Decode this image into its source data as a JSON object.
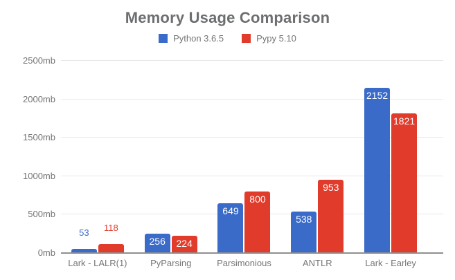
{
  "title": "Memory Usage Comparison",
  "legend": {
    "items": [
      {
        "label": "Python 3.6.5",
        "color": "#3a6bc8"
      },
      {
        "label": "Pypy 5.10",
        "color": "#e03b2b"
      }
    ]
  },
  "colors": {
    "series_blue": "#3a6bc8",
    "series_red": "#e03b2b",
    "title_text": "#6d6e70",
    "axis_text": "#757575",
    "gridline": "#e8e8e8",
    "baseline": "#8f8f8f",
    "inside_label": "#ffffff",
    "background": "#ffffff"
  },
  "chart_data": {
    "type": "bar",
    "title": "Memory Usage Comparison",
    "categories": [
      "Lark - LALR(1)",
      "PyParsing",
      "Parsimonious",
      "ANTLR",
      "Lark - Earley"
    ],
    "series": [
      {
        "name": "Python 3.6.5",
        "color": "#3a6bc8",
        "values": [
          53,
          256,
          649,
          538,
          2152
        ]
      },
      {
        "name": "Pypy 5.10",
        "color": "#e03b2b",
        "values": [
          118,
          224,
          800,
          953,
          1821
        ]
      }
    ],
    "xlabel": "",
    "ylabel": "",
    "ylim": [
      0,
      2500
    ],
    "y_ticks": [
      {
        "value": 0,
        "label": "0mb"
      },
      {
        "value": 500,
        "label": "500mb"
      },
      {
        "value": 1000,
        "label": "1000mb"
      },
      {
        "value": 1500,
        "label": "1500mb"
      },
      {
        "value": 2000,
        "label": "2000mb"
      },
      {
        "value": 2500,
        "label": "2500mb"
      }
    ],
    "grid": true,
    "legend_position": "top",
    "value_labels": "inside-top-or-above"
  }
}
